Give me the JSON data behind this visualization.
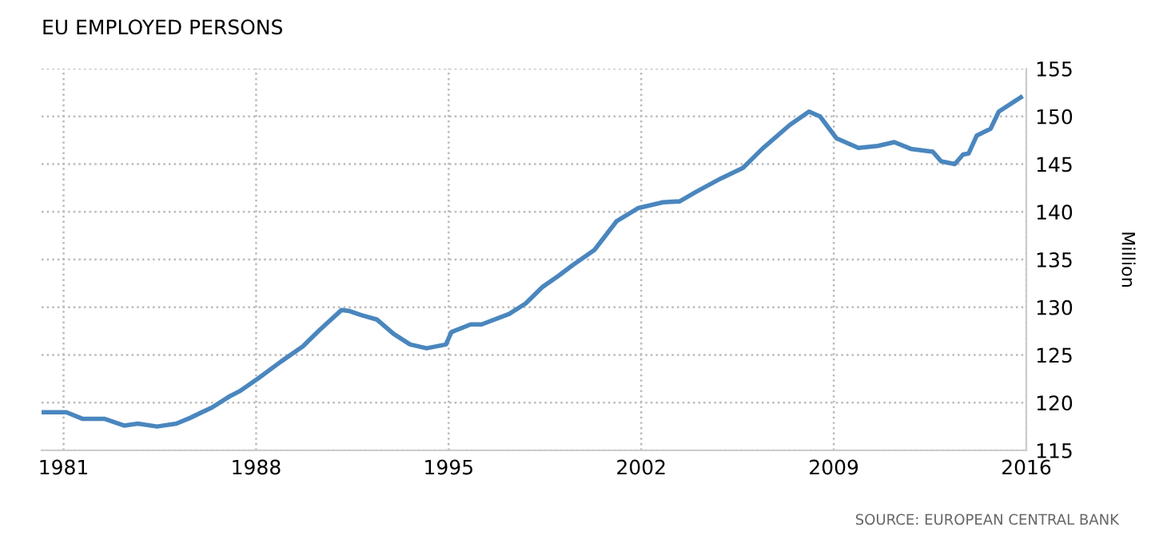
{
  "chart_data": {
    "type": "line",
    "title": "EU EMPLOYED PERSONS",
    "ylabel": "Million",
    "annotations": [
      "SOURCE: EUROPEAN CENTRAL BANK"
    ],
    "x": [
      1980.2,
      1981.1,
      1981.7,
      1982.5,
      1983.2,
      1983.7,
      1984.4,
      1985.1,
      1985.6,
      1986.4,
      1987.0,
      1987.4,
      1988.1,
      1988.9,
      1989.7,
      1990.3,
      1991.1,
      1991.4,
      1991.8,
      1992.4,
      1993.0,
      1993.6,
      1994.2,
      1994.9,
      1995.1,
      1995.8,
      1996.2,
      1997.2,
      1997.8,
      1998.4,
      1999.0,
      1999.5,
      2000.3,
      2001.1,
      2001.9,
      2002.8,
      2003.4,
      2004.0,
      2004.9,
      2005.7,
      2006.4,
      2007.4,
      2008.1,
      2008.5,
      2009.1,
      2009.9,
      2010.6,
      2011.2,
      2011.8,
      2012.6,
      2012.9,
      2013.4,
      2013.7,
      2013.9,
      2014.2,
      2014.7,
      2015.0,
      2015.8
    ],
    "series": [
      {
        "color": "#4a86be",
        "values": [
          119.0,
          119.0,
          118.3,
          118.3,
          117.6,
          117.8,
          117.5,
          117.8,
          118.4,
          119.5,
          120.6,
          121.2,
          122.6,
          124.3,
          125.9,
          127.6,
          129.7,
          129.6,
          129.2,
          128.7,
          127.2,
          126.1,
          125.7,
          126.1,
          127.4,
          128.2,
          128.2,
          129.3,
          130.4,
          132.1,
          133.3,
          134.4,
          136.0,
          139.0,
          140.4,
          141.0,
          141.1,
          142.1,
          143.5,
          144.6,
          146.6,
          149.1,
          150.5,
          150.0,
          147.7,
          146.7,
          146.9,
          147.3,
          146.6,
          146.3,
          145.3,
          145.0,
          146.0,
          146.1,
          148.0,
          148.7,
          150.5,
          152.0
        ]
      }
    ],
    "xlim": [
      1980.2,
      2016
    ],
    "xticks": [
      1981,
      1988,
      1995,
      2002,
      2009,
      2016
    ],
    "ylim": [
      115,
      155
    ],
    "yticks": [
      115,
      120,
      125,
      130,
      135,
      140,
      145,
      150,
      155
    ],
    "grid": true,
    "marker": "none",
    "line_style": "solid"
  }
}
